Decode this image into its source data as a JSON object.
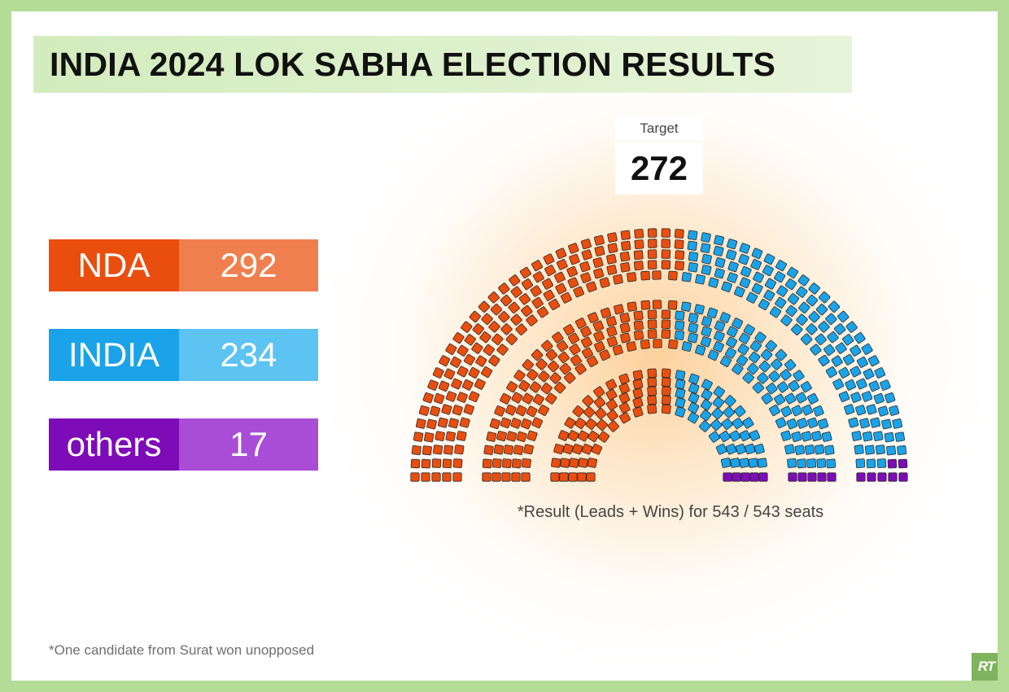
{
  "title": "INDIA 2024 LOK SABHA ELECTION RESULTS",
  "target": {
    "label": "Target",
    "value": "272"
  },
  "legend": [
    {
      "name": "NDA",
      "value": "292",
      "color": "#e94e0f",
      "light": "#ef7f4e"
    },
    {
      "name": "INDIA",
      "value": "234",
      "color": "#1aa3e8",
      "light": "#5cc3f2"
    },
    {
      "name": "others",
      "value": "17",
      "color": "#7d0bb8",
      "light": "#a94cd6"
    }
  ],
  "caption": "*Result (Leads + Wins) for 543 / 543 seats",
  "footnote": "*One candidate from Surat won unopposed",
  "logo_text": "RT",
  "chart_data": {
    "type": "parliament",
    "total_seats": 543,
    "majority": 272,
    "series": [
      {
        "name": "NDA",
        "value": 292,
        "color": "#e94e0f"
      },
      {
        "name": "INDIA",
        "value": 234,
        "color": "#1aa3e8"
      },
      {
        "name": "others",
        "value": 17,
        "color": "#7d0bb8"
      }
    ]
  }
}
